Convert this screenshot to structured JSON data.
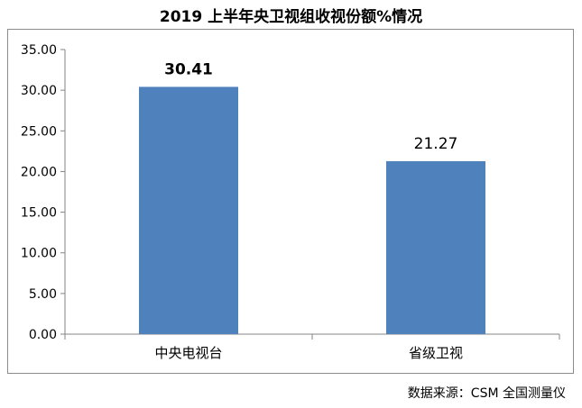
{
  "chart_data": {
    "type": "bar",
    "title": "2019 上半年央卫视组收视份额%情况",
    "categories": [
      "中央电视台",
      "省级卫视"
    ],
    "values": [
      30.41,
      21.27
    ],
    "value_labels": [
      "30.41",
      "21.27"
    ],
    "ylim": [
      0,
      35
    ],
    "yticks": [
      "0.00",
      "5.00",
      "10.00",
      "15.00",
      "20.00",
      "25.00",
      "30.00",
      "35.00"
    ],
    "xlabel": "",
    "ylabel": "",
    "grid": false,
    "legend": "none",
    "bar_color": "#4f81bd"
  },
  "source": "数据来源：CSM 全国测量仪"
}
